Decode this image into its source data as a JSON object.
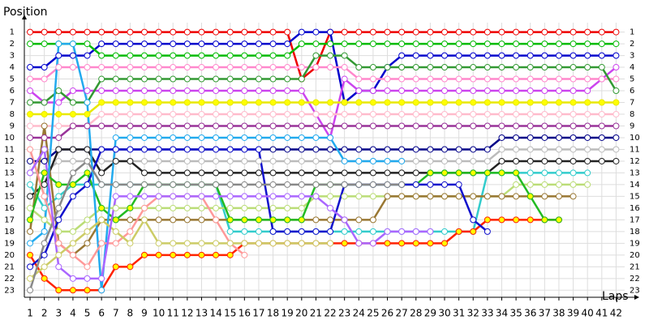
{
  "chart_data": {
    "type": "lap-chart",
    "y_label": "Position",
    "x_label": "Laps",
    "x": [
      1,
      2,
      3,
      4,
      5,
      6,
      7,
      8,
      9,
      10,
      11,
      12,
      13,
      14,
      15,
      16,
      17,
      18,
      19,
      20,
      21,
      22,
      23,
      24,
      25,
      26,
      27,
      28,
      29,
      30,
      31,
      32,
      33,
      34,
      35,
      36,
      37,
      38,
      39,
      40,
      41,
      42
    ],
    "xlim": [
      0.6,
      42.6
    ],
    "xticks": [
      1,
      2,
      3,
      4,
      5,
      6,
      7,
      8,
      9,
      10,
      11,
      12,
      13,
      14,
      15,
      16,
      17,
      18,
      19,
      20,
      21,
      22,
      23,
      24,
      25,
      26,
      27,
      28,
      29,
      30,
      31,
      32,
      33,
      34,
      35,
      36,
      37,
      38,
      39,
      40,
      41,
      42
    ],
    "ylim": [
      0.2,
      23.6
    ],
    "yticks": [
      1,
      2,
      3,
      4,
      5,
      6,
      7,
      8,
      9,
      10,
      11,
      12,
      13,
      14,
      15,
      16,
      17,
      18,
      19,
      20,
      21,
      22,
      23
    ],
    "y_reversed": true,
    "grid": true,
    "series": [
      {
        "color": "#ee0000",
        "marker": "#ffffff",
        "values": [
          1,
          1,
          1,
          1,
          1,
          1,
          1,
          1,
          1,
          1,
          1,
          1,
          1,
          1,
          1,
          1,
          1,
          1,
          1,
          5,
          4,
          1,
          1,
          1,
          1,
          1,
          1,
          1,
          1,
          1,
          1,
          1,
          1,
          1,
          1,
          1,
          1,
          1,
          1,
          1,
          1,
          1
        ]
      },
      {
        "color": "#0000cc",
        "marker": "#ffffff",
        "values": [
          4,
          4,
          3,
          3,
          3,
          2,
          2,
          2,
          2,
          2,
          2,
          2,
          2,
          2,
          2,
          2,
          2,
          2,
          2,
          1,
          1,
          1,
          7,
          6,
          6,
          4,
          3,
          3,
          3,
          3,
          3,
          3,
          3,
          3,
          3,
          3,
          3,
          3,
          3,
          3,
          3,
          3
        ]
      },
      {
        "color": "#00bb00",
        "marker": "#ffffff",
        "values": [
          2,
          2,
          2,
          2,
          2,
          3,
          3,
          3,
          3,
          3,
          3,
          3,
          3,
          3,
          3,
          3,
          3,
          3,
          3,
          2,
          2,
          2,
          2,
          2,
          2,
          2,
          2,
          2,
          2,
          2,
          2,
          2,
          2,
          2,
          2,
          2,
          2,
          2,
          2,
          2,
          2,
          2
        ]
      },
      {
        "color": "#cc44ee",
        "marker": "#ffffff",
        "values": [
          6,
          7,
          7,
          6,
          6,
          6,
          6,
          6,
          6,
          6,
          6,
          6,
          6,
          6,
          6,
          6,
          6,
          6,
          6,
          6,
          8,
          10,
          5,
          6,
          6,
          6,
          6,
          6,
          6,
          6,
          6,
          6,
          6,
          6,
          6,
          6,
          6,
          6,
          6,
          6,
          5,
          4
        ]
      },
      {
        "color": "#ff88cc",
        "marker": "#ffffff",
        "values": [
          5,
          5,
          4,
          4,
          4,
          4,
          4,
          4,
          4,
          4,
          4,
          4,
          4,
          4,
          4,
          4,
          4,
          4,
          4,
          4,
          4,
          4,
          4,
          5,
          5,
          5,
          5,
          5,
          5,
          5,
          5,
          5,
          5,
          5,
          5,
          5,
          5,
          5,
          5,
          5,
          5,
          5
        ]
      },
      {
        "color": "#339933",
        "marker": "#ffffff",
        "values": [
          7,
          7,
          6,
          7,
          7,
          5,
          5,
          5,
          5,
          5,
          5,
          5,
          5,
          5,
          5,
          5,
          5,
          5,
          5,
          5,
          3,
          3,
          3,
          4,
          4,
          4,
          4,
          4,
          4,
          4,
          4,
          4,
          4,
          4,
          4,
          4,
          4,
          4,
          4,
          4,
          4,
          6
        ]
      },
      {
        "color": "#e8e800",
        "marker": "#ffff00",
        "values": [
          8,
          8,
          8,
          8,
          8,
          7,
          7,
          7,
          7,
          7,
          7,
          7,
          7,
          7,
          7,
          7,
          7,
          7,
          7,
          7,
          7,
          7,
          7,
          7,
          7,
          7,
          7,
          7,
          7,
          7,
          7,
          7,
          7,
          7,
          7,
          7,
          7,
          7,
          7,
          7,
          7,
          7
        ]
      },
      {
        "color": "#ffbbcc",
        "marker": "#ffffff",
        "values": [
          9,
          9,
          9,
          9,
          9,
          8,
          8,
          8,
          8,
          8,
          8,
          8,
          8,
          8,
          8,
          8,
          8,
          8,
          8,
          8,
          8,
          8,
          8,
          8,
          8,
          8,
          8,
          8,
          8,
          8,
          8,
          8,
          8,
          8,
          8,
          8,
          8,
          8,
          8,
          8,
          8,
          8
        ]
      },
      {
        "color": "#993399",
        "marker": "#ffffff",
        "values": [
          10,
          10,
          10,
          9,
          9,
          9,
          9,
          9,
          9,
          9,
          9,
          9,
          9,
          9,
          9,
          9,
          9,
          9,
          9,
          9,
          9,
          9,
          9,
          9,
          9,
          9,
          9,
          9,
          9,
          9,
          9,
          9,
          9,
          9,
          9,
          9,
          9,
          9,
          9,
          9,
          9,
          9
        ]
      },
      {
        "color": "#000088",
        "marker": "#ffffff",
        "values": [
          12,
          12,
          11,
          11,
          11,
          11,
          11,
          11,
          11,
          11,
          11,
          11,
          11,
          11,
          11,
          11,
          11,
          11,
          11,
          11,
          11,
          11,
          11,
          11,
          11,
          11,
          11,
          11,
          11,
          11,
          11,
          11,
          11,
          10,
          10,
          10,
          10,
          10,
          10,
          10,
          10,
          10
        ]
      },
      {
        "color": "#bbbbbb",
        "marker": "#ffffff",
        "values": [
          13,
          13,
          12,
          12,
          12,
          12,
          12,
          12,
          12,
          12,
          12,
          12,
          12,
          12,
          12,
          12,
          12,
          12,
          12,
          12,
          12,
          12,
          12,
          12,
          12,
          12,
          12,
          12,
          12,
          12,
          12,
          12,
          12,
          11,
          11,
          11,
          11,
          11,
          11,
          11,
          11,
          11
        ]
      },
      {
        "color": "#222222",
        "marker": "#ffffff",
        "values": [
          15,
          14,
          11,
          11,
          11,
          13,
          12,
          12,
          13,
          13,
          13,
          13,
          13,
          13,
          13,
          13,
          13,
          13,
          13,
          13,
          13,
          13,
          13,
          13,
          13,
          13,
          13,
          13,
          13,
          13,
          13,
          13,
          13,
          12,
          12,
          12,
          12,
          12,
          12,
          12,
          12,
          12
        ]
      },
      {
        "color": "#33cccc",
        "marker": "#ffffff",
        "values": [
          14,
          16,
          15,
          14,
          14,
          14,
          14,
          14,
          14,
          14,
          14,
          14,
          14,
          14,
          18,
          18,
          18,
          18,
          18,
          18,
          18,
          18,
          18,
          18,
          18,
          18,
          18,
          18,
          18,
          18,
          18,
          18,
          13,
          13,
          13,
          13,
          13,
          13,
          13,
          13,
          null,
          null
        ]
      },
      {
        "color": "#bbdd77",
        "marker": "#ffffff",
        "values": [
          16,
          17,
          18,
          18,
          17,
          16,
          16,
          16,
          16,
          16,
          16,
          16,
          16,
          16,
          16,
          16,
          16,
          16,
          16,
          16,
          15,
          15,
          15,
          15,
          15,
          15,
          15,
          15,
          15,
          15,
          15,
          15,
          15,
          15,
          14,
          14,
          14,
          14,
          14,
          14,
          null,
          null
        ]
      },
      {
        "color": "#997733",
        "marker": "#ffffff",
        "values": [
          18,
          9,
          19,
          20,
          19,
          17,
          17,
          17,
          17,
          17,
          17,
          17,
          17,
          17,
          17,
          17,
          17,
          17,
          17,
          17,
          17,
          17,
          17,
          17,
          17,
          15,
          15,
          15,
          15,
          15,
          15,
          15,
          15,
          15,
          15,
          15,
          15,
          15,
          15,
          null,
          null,
          null
        ]
      },
      {
        "color": "#ff2200",
        "marker": "#ffff00",
        "values": [
          20,
          22,
          23,
          23,
          23,
          23,
          21,
          21,
          20,
          20,
          20,
          20,
          20,
          20,
          20,
          19,
          19,
          19,
          19,
          19,
          19,
          19,
          19,
          19,
          19,
          19,
          19,
          19,
          19,
          19,
          18,
          18,
          17,
          17,
          17,
          17,
          17,
          17,
          null,
          null,
          null,
          null
        ]
      },
      {
        "color": "#22bb22",
        "marker": "#ffff00",
        "values": [
          17,
          13,
          14,
          14,
          13,
          16,
          17,
          16,
          14,
          14,
          14,
          14,
          14,
          14,
          17,
          17,
          17,
          17,
          17,
          17,
          14,
          14,
          14,
          14,
          14,
          14,
          14,
          14,
          13,
          13,
          13,
          13,
          13,
          13,
          13,
          15,
          17,
          17,
          null,
          null,
          null,
          null
        ]
      },
      {
        "color": "#1111cc",
        "marker": "#ffffff",
        "values": [
          21,
          20,
          17,
          15,
          14,
          11,
          11,
          11,
          11,
          11,
          11,
          11,
          11,
          11,
          11,
          11,
          11,
          18,
          18,
          18,
          18,
          18,
          14,
          14,
          14,
          14,
          14,
          14,
          14,
          14,
          14,
          17,
          18,
          null,
          null,
          null,
          null,
          null,
          null,
          null,
          null,
          null
        ]
      },
      {
        "color": "#22aaee",
        "marker": "#ffffff",
        "values": [
          19,
          18,
          2,
          2,
          7,
          23,
          10,
          10,
          10,
          10,
          10,
          10,
          10,
          10,
          10,
          10,
          10,
          10,
          10,
          10,
          10,
          10,
          12,
          12,
          12,
          12,
          12,
          null,
          null,
          null,
          null,
          null,
          null,
          null,
          null,
          null,
          null,
          null,
          null,
          null,
          null,
          null
        ]
      },
      {
        "color": "#ff9999",
        "marker": "#ffffff",
        "values": [
          11,
          15,
          19,
          20,
          21,
          19,
          19,
          18,
          16,
          15,
          15,
          15,
          15,
          17,
          19,
          20,
          null,
          null,
          null,
          null,
          null,
          null,
          null,
          null,
          null,
          null,
          null,
          null,
          null,
          null,
          null,
          null,
          null,
          null,
          null,
          null,
          null,
          null,
          null,
          null,
          null,
          null
        ]
      },
      {
        "color": "#cccc66",
        "marker": "#ffffff",
        "values": [
          22,
          21,
          20,
          19,
          18,
          17,
          18,
          19,
          17,
          19,
          19,
          19,
          19,
          19,
          19,
          19,
          19,
          19,
          19,
          19,
          19,
          19,
          null,
          null,
          null,
          null,
          null,
          null,
          null,
          null,
          null,
          null,
          null,
          null,
          null,
          null,
          null,
          null,
          null,
          null,
          null,
          null
        ]
      },
      {
        "color": "#888888",
        "marker": "#ffffff",
        "values": [
          23,
          19,
          16,
          13,
          12,
          14,
          14,
          14,
          14,
          14,
          14,
          14,
          14,
          14,
          14,
          14,
          14,
          14,
          14,
          14,
          14,
          14,
          14,
          14,
          14,
          14,
          14,
          null,
          null,
          null,
          null,
          null,
          null,
          null,
          null,
          null,
          null,
          null,
          null,
          null,
          null,
          null
        ]
      },
      {
        "color": "#aa66ff",
        "marker": "#ffffff",
        "values": [
          13,
          11,
          21,
          22,
          22,
          22,
          15,
          15,
          15,
          15,
          15,
          15,
          15,
          15,
          15,
          15,
          15,
          15,
          15,
          15,
          15,
          16,
          17,
          19,
          19,
          18,
          18,
          18,
          18,
          null,
          null,
          null,
          null,
          null,
          null,
          null,
          null,
          null,
          null,
          null,
          null,
          null
        ]
      }
    ]
  }
}
